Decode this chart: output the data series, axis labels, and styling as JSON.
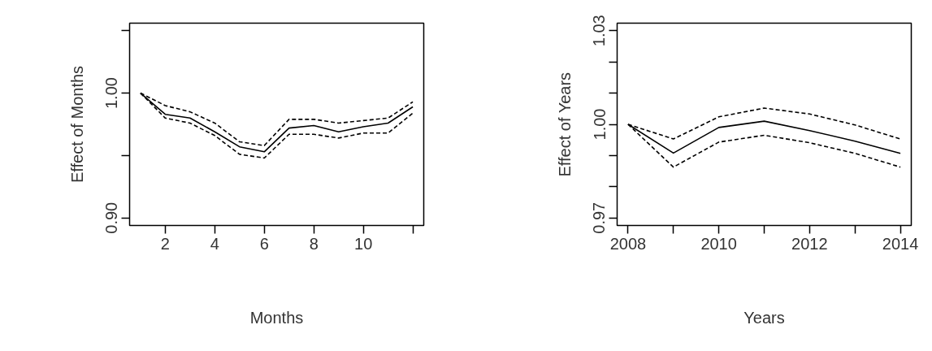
{
  "chart_data": [
    {
      "type": "line",
      "xlabel": "Months",
      "ylabel": "Effect of Months",
      "x": [
        1,
        2,
        3,
        4,
        5,
        6,
        7,
        8,
        9,
        10,
        11,
        12
      ],
      "xlim": [
        0.56,
        12.44
      ],
      "xticks": [
        2,
        4,
        6,
        8,
        10,
        {
          "value": 12,
          "label": null
        }
      ],
      "ylim": [
        0.894,
        1.056
      ],
      "yticks": [
        {
          "value": 0.9,
          "label": "0.90"
        },
        {
          "value": 0.95,
          "label": null
        },
        {
          "value": 1.0,
          "label": "1.00"
        },
        {
          "value": 1.05,
          "label": null
        }
      ],
      "grid": false,
      "series": [
        {
          "color": "#000000",
          "line_style": "solid",
          "values": [
            1.0,
            0.983,
            0.98,
            0.969,
            0.957,
            0.953,
            0.972,
            0.974,
            0.969,
            0.973,
            0.976,
            0.989
          ]
        },
        {
          "color": "#000000",
          "line_style": "dashed",
          "values": [
            1.0,
            0.99,
            0.985,
            0.976,
            0.961,
            0.958,
            0.979,
            0.979,
            0.976,
            0.978,
            0.98,
            0.993
          ]
        },
        {
          "color": "#000000",
          "line_style": "dashed",
          "values": [
            1.0,
            0.98,
            0.976,
            0.966,
            0.951,
            0.948,
            0.967,
            0.967,
            0.964,
            0.968,
            0.968,
            0.984
          ]
        }
      ]
    },
    {
      "type": "line",
      "xlabel": "Years",
      "ylabel": "Effect of Years",
      "x": [
        2008,
        2009,
        2010,
        2011,
        2012,
        2013,
        2014
      ],
      "xlim": [
        2007.76,
        2014.24
      ],
      "xticks": [
        2008,
        {
          "value": 2009,
          "label": null
        },
        2010,
        {
          "value": 2011,
          "label": null
        },
        2012,
        {
          "value": 2013,
          "label": null
        },
        2014
      ],
      "ylim": [
        0.9676,
        1.0324
      ],
      "yticks": [
        {
          "value": 0.97,
          "label": "0.97"
        },
        {
          "value": 0.98,
          "label": null
        },
        {
          "value": 0.99,
          "label": null
        },
        {
          "value": 1.0,
          "label": "1.00"
        },
        {
          "value": 1.01,
          "label": null
        },
        {
          "value": 1.02,
          "label": null
        },
        {
          "value": 1.03,
          "label": "1.03"
        }
      ],
      "grid": false,
      "series": [
        {
          "color": "#000000",
          "line_style": "solid",
          "values": [
            1.0,
            0.9908,
            0.999,
            1.001,
            0.998,
            0.9946,
            0.9907
          ]
        },
        {
          "color": "#000000",
          "line_style": "dashed",
          "values": [
            1.0,
            0.9953,
            1.0024,
            1.0052,
            1.0033,
            0.9998,
            0.9953
          ]
        },
        {
          "color": "#000000",
          "line_style": "dashed",
          "values": [
            1.0,
            0.9863,
            0.9943,
            0.9965,
            0.9941,
            0.9907,
            0.9863
          ]
        }
      ]
    }
  ]
}
